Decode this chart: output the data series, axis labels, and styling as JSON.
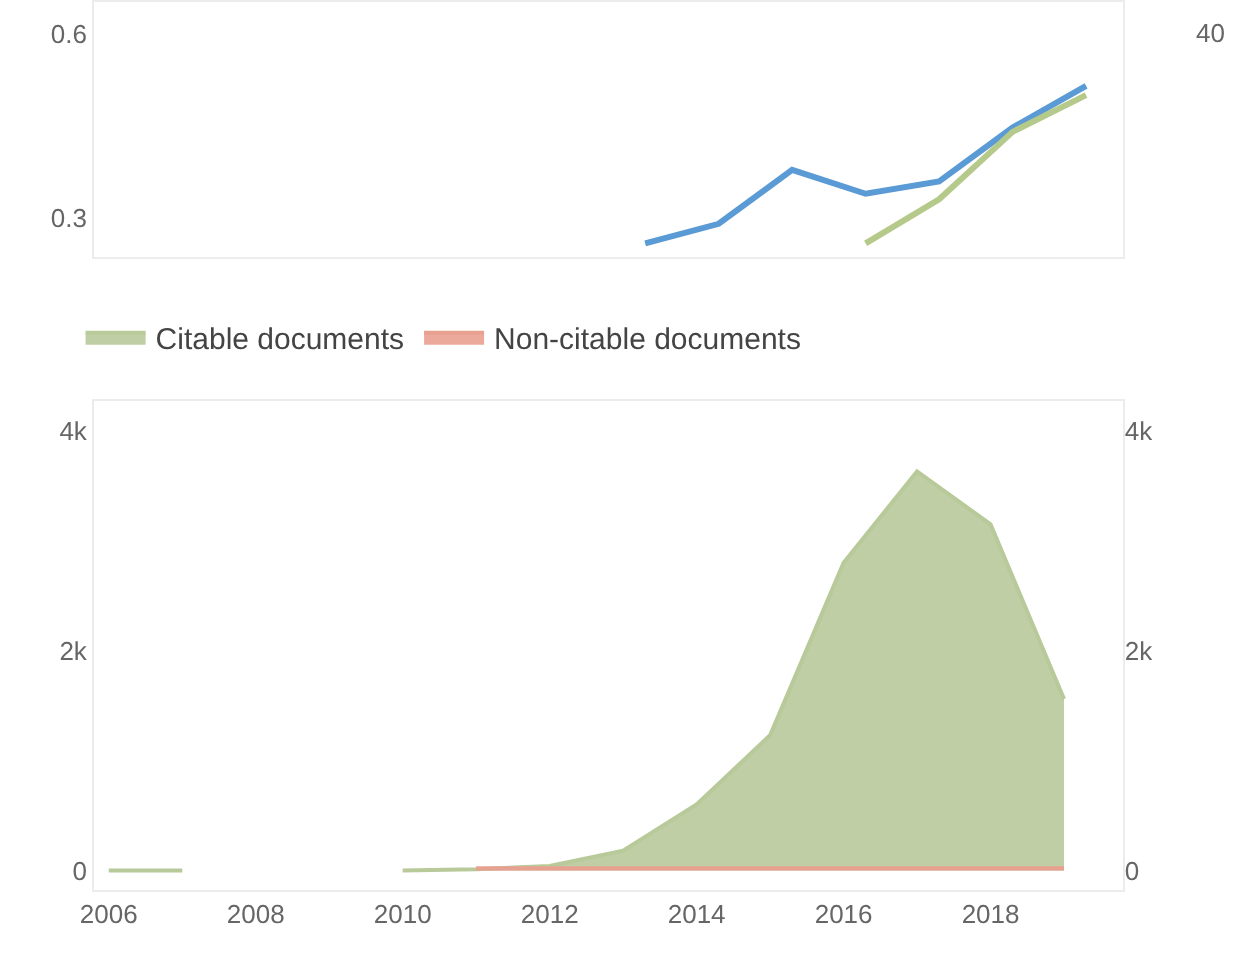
{
  "chart_data": [
    {
      "type": "line",
      "categories": [
        null,
        null,
        null,
        null,
        null,
        null,
        null,
        null,
        null,
        null,
        null,
        null,
        null,
        null
      ],
      "series": [
        {
          "color": "#5b9bd5",
          "values": [
            null,
            null,
            null,
            null,
            null,
            null,
            null,
            0.258,
            0.29,
            0.378,
            0.339,
            0.359,
            0.447,
            0.515
          ]
        },
        {
          "color": "#b5c98a",
          "values": [
            null,
            null,
            null,
            null,
            null,
            null,
            null,
            null,
            null,
            null,
            0.258,
            0.33,
            0.44,
            0.5
          ]
        }
      ],
      "ylim": [
        0.235,
        0.652
      ],
      "yticks": [
        0.3,
        0.6
      ],
      "tick_labels": "y",
      "annotations": [
        "40"
      ]
    },
    {
      "type": "area",
      "x": [
        2006,
        2007,
        2008,
        2009,
        2010,
        2011,
        2012,
        2013,
        2014,
        2015,
        2016,
        2017,
        2018,
        2019
      ],
      "series": [
        {
          "name": "Citable documents",
          "color": "#b8c99a",
          "values": [
            0,
            0,
            null,
            null,
            0,
            10,
            40,
            180,
            600,
            1230,
            2800,
            3630,
            3150,
            1560
          ]
        },
        {
          "name": "Non-citable documents",
          "color": "#e8a090",
          "values": [
            null,
            null,
            null,
            null,
            null,
            20,
            20,
            20,
            20,
            20,
            20,
            20,
            20,
            20
          ]
        }
      ],
      "xlim": [
        2005.8,
        2019.8
      ],
      "xticks": [
        2006,
        2008,
        2010,
        2012,
        2014,
        2016,
        2018
      ],
      "ylim": [
        -180,
        4270
      ],
      "yticks": [
        0,
        {
          "value": 2000,
          "label": "2k"
        },
        {
          "value": 4000,
          "label": "4k"
        }
      ],
      "y2lim": [
        -180,
        4270
      ],
      "y2ticks": [
        0,
        {
          "value": 2000,
          "label": "2k"
        },
        {
          "value": 4000,
          "label": "4k"
        }
      ],
      "legend": "top"
    }
  ]
}
